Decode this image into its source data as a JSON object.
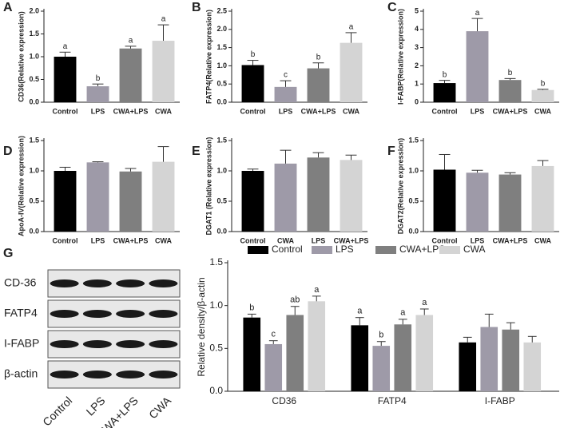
{
  "chart_data": [
    {
      "type": "bar",
      "panel": "A",
      "ylabel": "CD36(Relative expression)",
      "categories": [
        "Control",
        "LPS",
        "CWA+LPS",
        "CWA"
      ],
      "values": [
        1.0,
        0.35,
        1.18,
        1.35
      ],
      "errors": [
        0.1,
        0.05,
        0.05,
        0.35
      ],
      "letters": [
        "a",
        "b",
        "a",
        "a"
      ],
      "colors": [
        "#000000",
        "#9e9aa8",
        "#7f7f7f",
        "#d4d4d4"
      ],
      "ylim": [
        0,
        2.0
      ],
      "yticks": [
        {
          "value": 0,
          "label": "0.0"
        },
        {
          "value": 0.5,
          "label": "0.5"
        },
        {
          "value": 1.0,
          "label": "1.0"
        },
        {
          "value": 1.5,
          "label": "1.5"
        },
        {
          "value": 2.0,
          "label": "2.0"
        }
      ]
    },
    {
      "type": "bar",
      "panel": "B",
      "ylabel": "FATP4(Relative expression)",
      "categories": [
        "Control",
        "LPS",
        "CWA+LPS",
        "CWA"
      ],
      "values": [
        1.02,
        0.42,
        0.93,
        1.63
      ],
      "errors": [
        0.13,
        0.17,
        0.15,
        0.28
      ],
      "letters": [
        "b",
        "c",
        "b",
        "a"
      ],
      "colors": [
        "#000000",
        "#9e9aa8",
        "#7f7f7f",
        "#d4d4d4"
      ],
      "ylim": [
        0,
        2.5
      ],
      "yticks": [
        {
          "value": 0,
          "label": "0.0"
        },
        {
          "value": 0.5,
          "label": "0.5"
        },
        {
          "value": 1.0,
          "label": "1.0"
        },
        {
          "value": 1.5,
          "label": "1.5"
        },
        {
          "value": 2.0,
          "label": "2.0"
        },
        {
          "value": 2.5,
          "label": "2.5"
        }
      ]
    },
    {
      "type": "bar",
      "panel": "C",
      "ylabel": "I-FABP(Relative expression)",
      "categories": [
        "Control",
        "LPS",
        "CWA+LPS",
        "CWA"
      ],
      "values": [
        1.05,
        3.9,
        1.22,
        0.67
      ],
      "errors": [
        0.15,
        0.7,
        0.08,
        0.04
      ],
      "letters": [
        "b",
        "a",
        "b",
        "b"
      ],
      "colors": [
        "#000000",
        "#9e9aa8",
        "#7f7f7f",
        "#d4d4d4"
      ],
      "ylim": [
        0,
        5
      ],
      "yticks": [
        0,
        1,
        2,
        3,
        4,
        5
      ]
    },
    {
      "type": "bar",
      "panel": "D",
      "ylabel": "ApoA-IV(Relative expression)",
      "categories": [
        "Control",
        "LPS",
        "CWA+LPS",
        "CWA"
      ],
      "values": [
        1.0,
        1.14,
        0.99,
        1.15
      ],
      "errors": [
        0.06,
        0.01,
        0.05,
        0.25
      ],
      "colors": [
        "#000000",
        "#9e9aa8",
        "#7f7f7f",
        "#d4d4d4"
      ],
      "ylim": [
        0,
        1.5
      ],
      "yticks": [
        {
          "value": 0,
          "label": "0.0"
        },
        {
          "value": 0.5,
          "label": "0.5"
        },
        {
          "value": 1.0,
          "label": "1.0"
        },
        {
          "value": 1.5,
          "label": "1.5"
        }
      ]
    },
    {
      "type": "bar",
      "panel": "E",
      "ylabel": "DGAT1 (Relative expression)",
      "categories": [
        "Control",
        "CWA",
        "LPS",
        "CWA+LPS"
      ],
      "values": [
        1.0,
        1.12,
        1.22,
        1.18
      ],
      "errors": [
        0.03,
        0.22,
        0.08,
        0.08
      ],
      "colors": [
        "#000000",
        "#9e9aa8",
        "#7f7f7f",
        "#d4d4d4"
      ],
      "ylim": [
        0,
        1.5
      ],
      "yticks": [
        {
          "value": 0,
          "label": "0.0"
        },
        {
          "value": 0.5,
          "label": "0.5"
        },
        {
          "value": 1.0,
          "label": "1.0"
        },
        {
          "value": 1.5,
          "label": "1.5"
        }
      ]
    },
    {
      "type": "bar",
      "panel": "F",
      "ylabel": "DGAT2(Relative expression)",
      "categories": [
        "Control",
        "LPS",
        "CWA+LPS",
        "CWA"
      ],
      "values": [
        1.02,
        0.97,
        0.94,
        1.08
      ],
      "errors": [
        0.25,
        0.04,
        0.03,
        0.09
      ],
      "colors": [
        "#000000",
        "#9e9aa8",
        "#7f7f7f",
        "#d4d4d4"
      ],
      "ylim": [
        0,
        1.5
      ],
      "yticks": [
        {
          "value": 0,
          "label": "0.0"
        },
        {
          "value": 0.5,
          "label": "0.5"
        },
        {
          "value": 1.0,
          "label": "1.0"
        },
        {
          "value": 1.5,
          "label": "1.5"
        }
      ]
    },
    {
      "type": "grouped-bar",
      "panel": "G",
      "ylabel": "Relative density/β-actin",
      "categories": [
        "CD36",
        "FATP4",
        "I-FABP"
      ],
      "series": [
        {
          "name": "Control",
          "color": "#000000",
          "values": [
            0.86,
            0.77,
            0.57
          ],
          "errors": [
            0.04,
            0.09,
            0.06
          ],
          "letters": [
            "b",
            "a",
            null
          ]
        },
        {
          "name": "LPS",
          "color": "#9e9aa8",
          "values": [
            0.55,
            0.53,
            0.75
          ],
          "errors": [
            0.04,
            0.05,
            0.15
          ],
          "letters": [
            "c",
            "b",
            null
          ]
        },
        {
          "name": "CWA+LPS",
          "color": "#7f7f7f",
          "values": [
            0.89,
            0.78,
            0.72
          ],
          "errors": [
            0.1,
            0.06,
            0.08
          ],
          "letters": [
            "ab",
            "a",
            null
          ]
        },
        {
          "name": "CWA",
          "color": "#d4d4d4",
          "values": [
            1.05,
            0.89,
            0.57
          ],
          "errors": [
            0.06,
            0.07,
            0.07
          ],
          "letters": [
            "a",
            "a",
            null
          ]
        }
      ],
      "ylim": [
        0,
        1.5
      ],
      "yticks": [
        {
          "value": 0,
          "label": "0.0"
        },
        {
          "value": 0.5,
          "label": "0.5"
        },
        {
          "value": 1.0,
          "label": "1.0"
        },
        {
          "value": 1.5,
          "label": "1.5"
        }
      ]
    }
  ],
  "blot": {
    "rows": [
      "CD-36",
      "FATP4",
      "I-FABP",
      "β-actin"
    ],
    "lanes": [
      "Control",
      "LPS",
      "CWA+LPS",
      "CWA"
    ]
  }
}
